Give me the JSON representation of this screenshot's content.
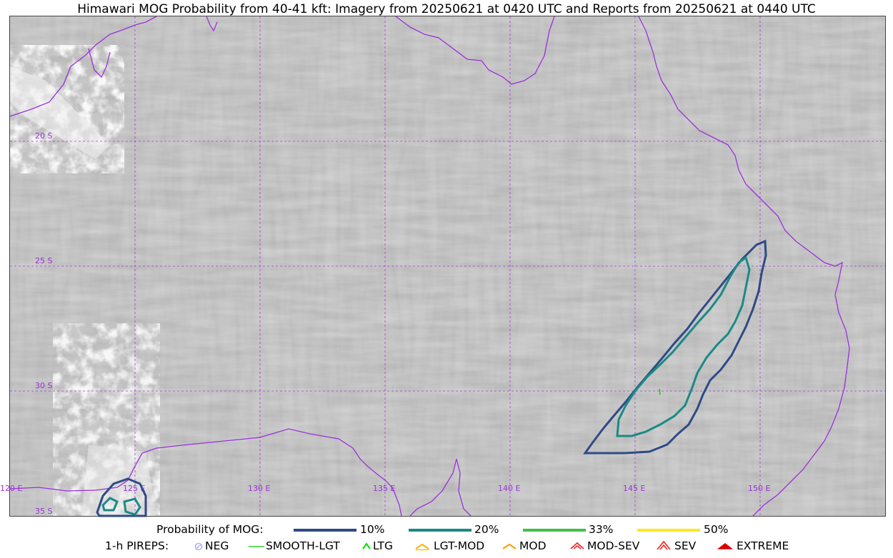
{
  "title": "Himawari MOG Probability from 40-41 kft: Imagery from 20250621 at 0420 UTC and Reports from 20250621 at 0440 UTC",
  "map": {
    "lat_labels": [
      "20 S",
      "25 S",
      "30 S",
      "35 S"
    ],
    "lon_labels": [
      "125 E",
      "130 E",
      "135 E",
      "140 E",
      "145 E",
      "150 E"
    ],
    "lon_label_left": "120 E",
    "colors": {
      "grid": "#9b30d9",
      "coastline": "#9b30d9",
      "imagery_base": "#b4b4b4"
    }
  },
  "legend": {
    "probability": {
      "label": "Probability of MOG:",
      "items": [
        {
          "label": "10%",
          "color": "#2e4a87"
        },
        {
          "label": "20%",
          "color": "#1a8a85"
        },
        {
          "label": "33%",
          "color": "#44bf4a"
        },
        {
          "label": "50%",
          "color": "#fde724"
        }
      ]
    },
    "pireps": {
      "label": "1-h PIREPS:",
      "items": [
        {
          "label": "NEG",
          "icon": "neg-circle-icon",
          "color": "#b3b3ff"
        },
        {
          "label": "SMOOTH-LGT",
          "icon": "smooth-lgt-line-icon",
          "color": "#33cc33"
        },
        {
          "label": "LTG",
          "icon": "ltg-caret-icon",
          "color": "#00dd00"
        },
        {
          "label": "LGT-MOD",
          "icon": "lgt-mod-caret-icon",
          "color": "#f5b400"
        },
        {
          "label": "MOD",
          "icon": "mod-caret-icon",
          "color": "#f5a000"
        },
        {
          "label": "MOD-SEV",
          "icon": "mod-sev-caret-icon",
          "color": "#ee2222"
        },
        {
          "label": "SEV",
          "icon": "sev-caret-icon",
          "color": "#ee2222"
        },
        {
          "label": "EXTREME",
          "icon": "extreme-caret-icon",
          "color": "#dd0000"
        }
      ]
    }
  }
}
